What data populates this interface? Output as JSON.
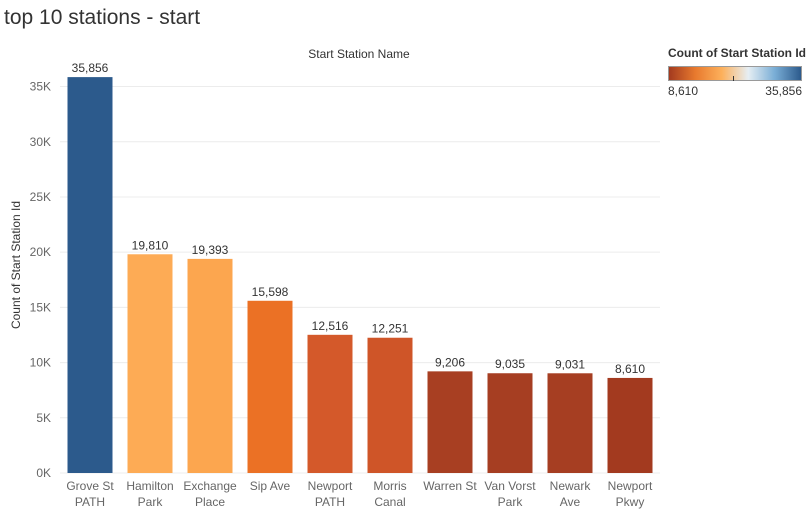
{
  "sheet_title": "top 10 stations - start",
  "legend": {
    "title": "Count of Start Station Id",
    "min_label": "8,610",
    "max_label": "35,856",
    "gradient": [
      "#a33a1f",
      "#e87a2e",
      "#fdb05b",
      "#e6eef3",
      "#7aaed6",
      "#2c5a8c"
    ]
  },
  "chart_data": {
    "type": "bar",
    "title": "Start Station Name",
    "ylabel": "Count of Start Station Id",
    "ylim": [
      0,
      36500
    ],
    "yticks": [
      0,
      5000,
      10000,
      15000,
      20000,
      25000,
      30000,
      35000
    ],
    "ytick_labels": [
      "0K",
      "5K",
      "10K",
      "15K",
      "20K",
      "25K",
      "30K",
      "35K"
    ],
    "grid": true,
    "categories": [
      [
        "Grove St",
        "PATH"
      ],
      [
        "Hamilton",
        "Park"
      ],
      [
        "Exchange",
        "Place"
      ],
      [
        "Sip Ave"
      ],
      [
        "Newport",
        "PATH"
      ],
      [
        "Morris",
        "Canal"
      ],
      [
        "Warren St"
      ],
      [
        "Van Vorst",
        "Park"
      ],
      [
        "Newark",
        "Ave"
      ],
      [
        "Newport",
        "Pkwy"
      ]
    ],
    "values": [
      35856,
      19810,
      19393,
      15598,
      12516,
      12251,
      9206,
      9035,
      9031,
      8610
    ],
    "value_labels": [
      "35,856",
      "19,810",
      "19,393",
      "15,598",
      "12,516",
      "12,251",
      "9,206",
      "9,035",
      "9,031",
      "8,610"
    ],
    "colors": [
      "#2c5a8c",
      "#fdab55",
      "#fca64f",
      "#eb7125",
      "#d4592a",
      "#cf5528",
      "#a83f22",
      "#a63e22",
      "#a63e22",
      "#a33a1f"
    ]
  }
}
